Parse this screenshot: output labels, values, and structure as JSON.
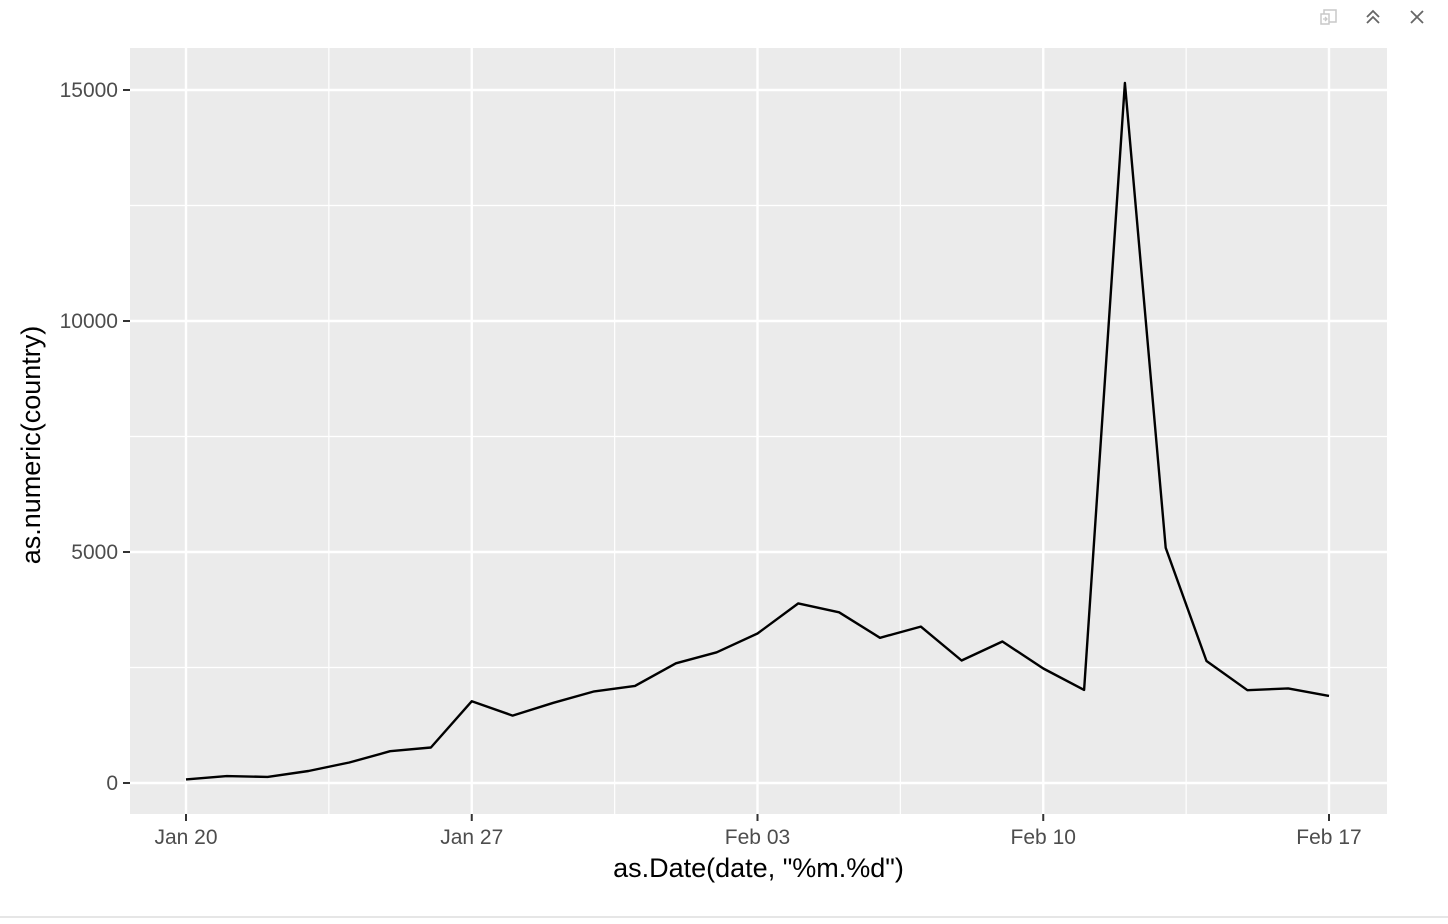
{
  "window": {
    "icons": [
      "export-icon",
      "collapse-icon",
      "close-icon"
    ]
  },
  "chart_data": {
    "type": "line",
    "xlabel": "as.Date(date, \"%m.%d\")",
    "ylabel": "as.numeric(country)",
    "x_ticks": [
      "Jan 20",
      "Jan 27",
      "Feb 03",
      "Feb 10",
      "Feb 17"
    ],
    "y_ticks": [
      "0",
      "5000",
      "10000",
      "15000"
    ],
    "ylim": [
      -700,
      16000
    ],
    "grid": true,
    "legend": "none",
    "colors": {
      "panel": "#ebebeb",
      "grid": "#ffffff",
      "line": "#000000"
    },
    "series": [
      {
        "x": [
          "2020-01-20",
          "2020-01-21",
          "2020-01-22",
          "2020-01-23",
          "2020-01-24",
          "2020-01-25",
          "2020-01-26",
          "2020-01-27",
          "2020-01-28",
          "2020-01-29",
          "2020-01-30",
          "2020-01-31",
          "2020-02-01",
          "2020-02-02",
          "2020-02-03",
          "2020-02-04",
          "2020-02-05",
          "2020-02-06",
          "2020-02-07",
          "2020-02-08",
          "2020-02-09",
          "2020-02-10",
          "2020-02-11",
          "2020-02-12",
          "2020-02-13",
          "2020-02-14",
          "2020-02-15",
          "2020-02-16",
          "2020-02-17"
        ],
        "values": [
          77,
          149,
          131,
          259,
          444,
          688,
          769,
          1771,
          1459,
          1737,
          1982,
          2102,
          2590,
          2829,
          3235,
          3887,
          3694,
          3143,
          3385,
          2652,
          3062,
          2478,
          2015,
          15152,
          5090,
          2641,
          2009,
          2048,
          1886
        ]
      }
    ]
  }
}
